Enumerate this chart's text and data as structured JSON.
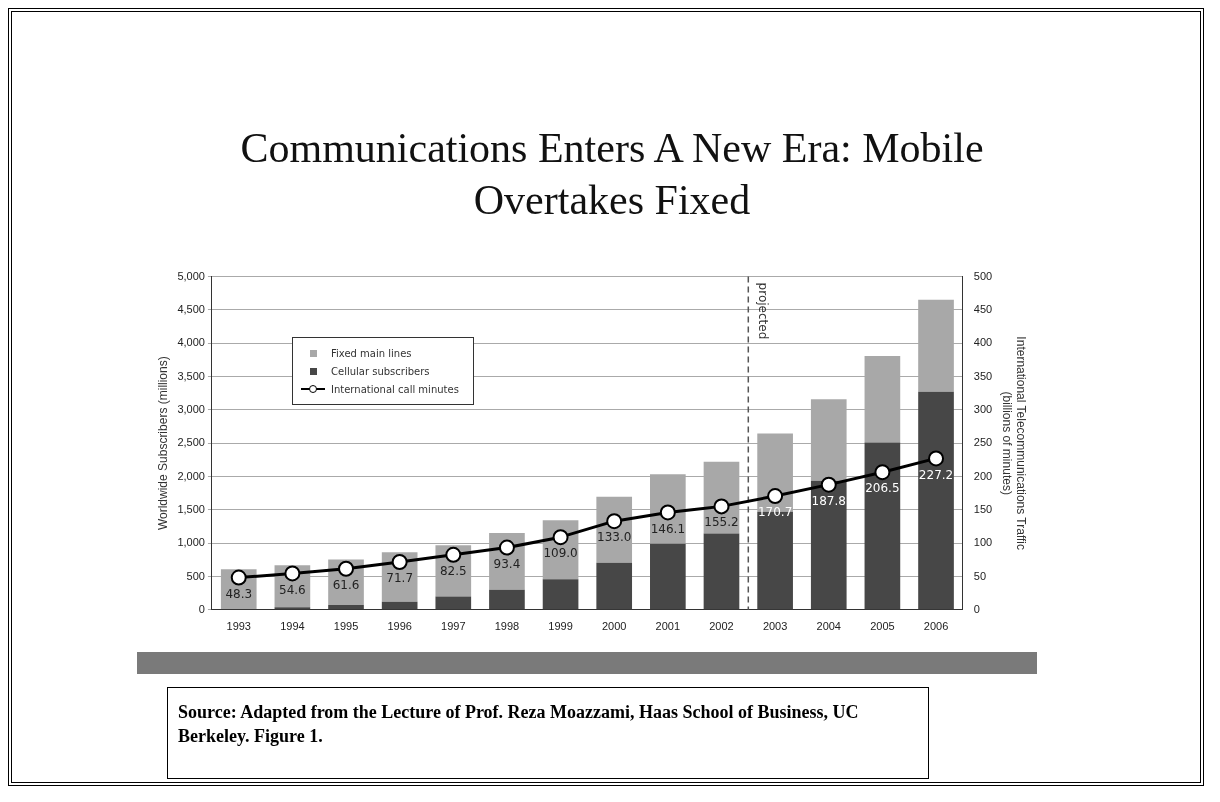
{
  "chart_data": {
    "type": "bar",
    "title": "Communications Enters A New Era: Mobile Overtakes Fixed",
    "ylabel": "Worldwide Subscribers (millions)",
    "y2label": "International Telecommunications Traffic\n(billions of minutes)",
    "categories": [
      "1993",
      "1994",
      "1995",
      "1996",
      "1997",
      "1998",
      "1999",
      "2000",
      "2001",
      "2002",
      "2003",
      "2004",
      "2005",
      "2006"
    ],
    "stacked": true,
    "series": [
      {
        "name": "Cellular subscribers",
        "color": "#474747",
        "values": [
          11,
          38,
          71,
          120,
          200,
          300,
          457,
          707,
          993,
          1146,
          1473,
          1937,
          2510,
          3273
        ]
      },
      {
        "name": "Fixed main lines",
        "color": "#a8a8a8",
        "values": [
          599,
          630,
          684,
          744,
          767,
          852,
          885,
          989,
          1042,
          1074,
          1173,
          1222,
          1298,
          1381
        ]
      },
      {
        "name": "International call minutes",
        "type": "line",
        "axis": "y2",
        "color": "#000000",
        "values": [
          48.3,
          54.6,
          61.6,
          71.7,
          82.5,
          93.4,
          109.0,
          133.0,
          146.1,
          155.2,
          170.7,
          187.8,
          206.5,
          227.2
        ],
        "value_labels": [
          "48.3",
          "54.6",
          "61.6",
          "71.7",
          "82.5",
          "93.4",
          "109.0",
          "133.0",
          "146.1",
          "155.2",
          "170.7",
          "187.8",
          "206.5",
          "227.2"
        ]
      }
    ],
    "ylim": [
      0,
      5000
    ],
    "yticks": [
      0,
      {
        "value": 500,
        "label": "500"
      },
      {
        "value": 1000,
        "label": "1,000"
      },
      {
        "value": 1500,
        "label": "1,500"
      },
      {
        "value": 2000,
        "label": "2,000"
      },
      {
        "value": 2500,
        "label": "2,500"
      },
      {
        "value": 3000,
        "label": "3,000"
      },
      {
        "value": 3500,
        "label": "3,500"
      },
      {
        "value": 4000,
        "label": "4,000"
      },
      {
        "value": 4500,
        "label": "4,500"
      },
      {
        "value": 5000,
        "label": "5,000"
      }
    ],
    "y2lim": [
      0,
      500
    ],
    "y2ticks": [
      0,
      50,
      100,
      150,
      200,
      250,
      300,
      350,
      400,
      450,
      500
    ],
    "ref_lines": [
      {
        "axis": "x",
        "value": "2003",
        "label": "projected",
        "line_style": "dashed",
        "color": "#555555"
      }
    ],
    "grid": "y",
    "legend": "top left",
    "marker": "circle",
    "line_style": "solid",
    "annotations": [
      "Source: Adapted from the Lecture of Prof. Reza Moazzami, Haas School of Business, UC Berkeley. Figure 1."
    ]
  }
}
